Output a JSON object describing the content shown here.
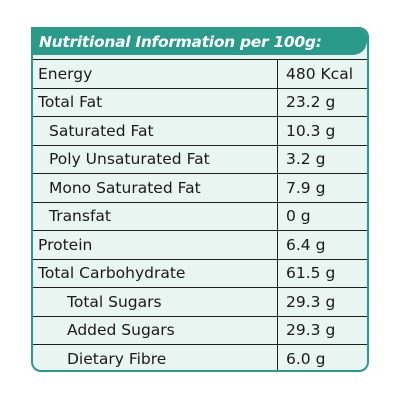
{
  "label": {
    "title": "Nutritional Information per 100g:",
    "header_color": "#2a9b8a",
    "background_color": "#e9f5f1",
    "rows": [
      {
        "name": "Energy",
        "value": "480 Kcal",
        "indent": 0
      },
      {
        "name": "Total Fat",
        "value": "23.2 g",
        "indent": 0
      },
      {
        "name": "Saturated Fat",
        "value": "10.3 g",
        "indent": 1
      },
      {
        "name": "Poly Unsaturated Fat",
        "value": "3.2 g",
        "indent": 1
      },
      {
        "name": "Mono Saturated Fat",
        "value": "7.9 g",
        "indent": 1
      },
      {
        "name": "Transfat",
        "value": "0 g",
        "indent": 1
      },
      {
        "name": "Protein",
        "value": "6.4 g",
        "indent": 0
      },
      {
        "name": "Total Carbohydrate",
        "value": "61.5 g",
        "indent": 0
      },
      {
        "name": "Total Sugars",
        "value": "29.3 g",
        "indent": 2
      },
      {
        "name": "Added Sugars",
        "value": "29.3 g",
        "indent": 2
      },
      {
        "name": "Dietary Fibre",
        "value": "6.0 g",
        "indent": 2
      }
    ]
  }
}
